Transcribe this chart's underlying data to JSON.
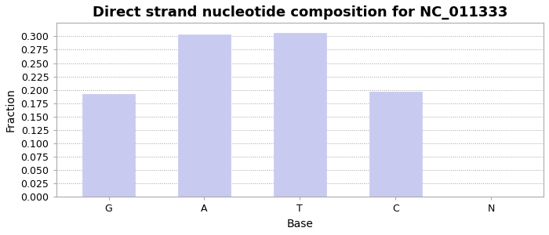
{
  "title": "Direct strand nucleotide composition for NC_011333",
  "xlabel": "Base",
  "ylabel": "Fraction",
  "categories": [
    "G",
    "A",
    "T",
    "C",
    "N"
  ],
  "values": [
    0.193,
    0.304,
    0.306,
    0.197,
    0.0
  ],
  "bar_color": "#c8caf0",
  "bar_edge_color": "#c8caf0",
  "ylim": [
    0.0,
    0.325
  ],
  "yticks": [
    0.0,
    0.025,
    0.05,
    0.075,
    0.1,
    0.125,
    0.15,
    0.175,
    0.2,
    0.225,
    0.25,
    0.275,
    0.3
  ],
  "title_fontsize": 13,
  "axis_label_fontsize": 10,
  "tick_fontsize": 9,
  "background_color": "#ffffff",
  "spine_color": "#aaaaaa",
  "grid_color": "#888888",
  "figsize": [
    7.0,
    3.0
  ],
  "dpi": 100
}
